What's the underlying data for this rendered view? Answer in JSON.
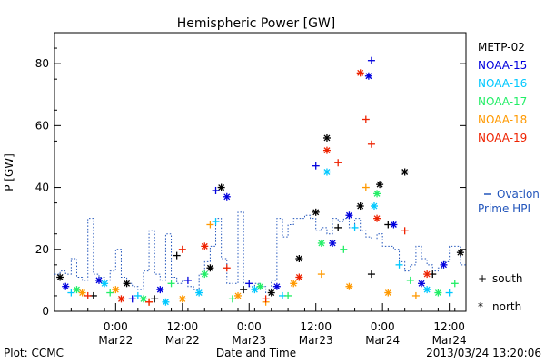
{
  "chart_data": {
    "type": "scatter",
    "title": "Hemispheric Power [GW]",
    "xlabel": "Date and Time",
    "ylabel": "P [GW]",
    "x_range": [
      "2013-03-21T13:00",
      "2013-03-24T15:00"
    ],
    "ylim": [
      0,
      90
    ],
    "y_ticks": [
      0,
      20,
      40,
      60,
      80
    ],
    "x_ticks": [
      {
        "t": "2013-03-22T00:00",
        "top": "0:00",
        "bottom": "Mar22"
      },
      {
        "t": "2013-03-22T12:00",
        "top": "12:00",
        "bottom": "Mar22"
      },
      {
        "t": "2013-03-23T00:00",
        "top": "0:00",
        "bottom": "Mar23"
      },
      {
        "t": "2013-03-23T12:00",
        "top": "12:00",
        "bottom": "Mar23"
      },
      {
        "t": "2013-03-24T00:00",
        "top": "0:00",
        "bottom": "Mar24"
      },
      {
        "t": "2013-03-24T12:00",
        "top": "12:00",
        "bottom": "Mar24"
      }
    ],
    "legend": [
      {
        "name": "METP-02",
        "color": "#000000"
      },
      {
        "name": "NOAA-15",
        "color": "#0000dd"
      },
      {
        "name": "NOAA-16",
        "color": "#00c8ff"
      },
      {
        "name": "NOAA-17",
        "color": "#22ee66"
      },
      {
        "name": "NOAA-18",
        "color": "#ff9900"
      },
      {
        "name": "NOAA-19",
        "color": "#ee2200"
      }
    ],
    "legend_position": "right",
    "ovation_label": "Ovation Prime HPI",
    "ovation_color": "#2255bb",
    "marker_legend": {
      "south": "south",
      "north": "north"
    },
    "ovation_series": {
      "x": [
        "2013-03-21T13:00",
        "2013-03-21T14:00",
        "2013-03-21T15:00",
        "2013-03-21T16:00",
        "2013-03-21T17:00",
        "2013-03-21T18:00",
        "2013-03-21T19:00",
        "2013-03-21T20:00",
        "2013-03-21T21:00",
        "2013-03-21T22:00",
        "2013-03-21T23:00",
        "2013-03-22T00:00",
        "2013-03-22T01:00",
        "2013-03-22T02:00",
        "2013-03-22T03:00",
        "2013-03-22T04:00",
        "2013-03-22T05:00",
        "2013-03-22T06:00",
        "2013-03-22T07:00",
        "2013-03-22T08:00",
        "2013-03-22T09:00",
        "2013-03-22T10:00",
        "2013-03-22T11:00",
        "2013-03-22T12:00",
        "2013-03-22T13:00",
        "2013-03-22T14:00",
        "2013-03-22T15:00",
        "2013-03-22T16:00",
        "2013-03-22T17:00",
        "2013-03-22T18:00",
        "2013-03-22T19:00",
        "2013-03-22T20:00",
        "2013-03-22T21:00",
        "2013-03-22T22:00",
        "2013-03-22T23:00",
        "2013-03-23T00:00",
        "2013-03-23T01:00",
        "2013-03-23T02:00",
        "2013-03-23T03:00",
        "2013-03-23T04:00",
        "2013-03-23T05:00",
        "2013-03-23T06:00",
        "2013-03-23T07:00",
        "2013-03-23T08:00",
        "2013-03-23T09:00",
        "2013-03-23T10:00",
        "2013-03-23T11:00",
        "2013-03-23T12:00",
        "2013-03-23T13:00",
        "2013-03-23T14:00",
        "2013-03-23T15:00",
        "2013-03-23T16:00",
        "2013-03-23T17:00",
        "2013-03-23T18:00",
        "2013-03-23T19:00",
        "2013-03-23T20:00",
        "2013-03-23T21:00",
        "2013-03-23T22:00",
        "2013-03-23T23:00",
        "2013-03-24T00:00",
        "2013-03-24T01:00",
        "2013-03-24T02:00",
        "2013-03-24T03:00",
        "2013-03-24T04:00",
        "2013-03-24T05:00",
        "2013-03-24T06:00",
        "2013-03-24T07:00",
        "2013-03-24T08:00",
        "2013-03-24T09:00",
        "2013-03-24T10:00",
        "2013-03-24T11:00",
        "2013-03-24T12:00",
        "2013-03-24T13:00",
        "2013-03-24T14:00"
      ],
      "y": [
        12,
        13,
        12,
        17,
        11,
        10,
        30,
        12,
        11,
        10,
        13,
        20,
        11,
        9,
        8,
        7,
        13,
        26,
        12,
        10,
        25,
        11,
        9,
        10,
        8,
        7,
        12,
        16,
        21,
        30,
        17,
        9,
        9,
        32,
        9,
        8,
        9,
        8,
        6,
        10,
        30,
        24,
        28,
        30,
        30,
        31,
        30,
        26,
        27,
        25,
        30,
        29,
        30,
        27,
        30,
        26,
        24,
        23,
        25,
        21,
        21,
        20,
        16,
        13,
        15,
        21,
        17,
        15,
        13,
        14,
        16,
        21,
        21,
        15
      ]
    },
    "series": [
      {
        "name": "METP-02",
        "color": "#000000",
        "x": [
          "2013-03-21T14:00",
          "2013-03-21T20:00",
          "2013-03-22T02:00",
          "2013-03-22T07:00",
          "2013-03-22T11:00",
          "2013-03-22T17:00",
          "2013-03-22T19:00",
          "2013-03-22T23:00",
          "2013-03-23T04:00",
          "2013-03-23T09:00",
          "2013-03-23T12:00",
          "2013-03-23T14:00",
          "2013-03-23T16:00",
          "2013-03-23T20:00",
          "2013-03-23T22:00",
          "2013-03-23T23:30",
          "2013-03-24T01:00",
          "2013-03-24T04:00",
          "2013-03-24T09:00",
          "2013-03-24T14:00"
        ],
        "y": [
          11,
          5,
          9,
          4,
          18,
          14,
          40,
          7,
          6,
          17,
          32,
          56,
          27,
          34,
          12,
          41,
          28,
          45,
          12,
          19
        ],
        "hemi": [
          "n",
          "s",
          "n",
          "s",
          "s",
          "n",
          "n",
          "s",
          "n",
          "n",
          "n",
          "n",
          "s",
          "n",
          "s",
          "n",
          "s",
          "n",
          "s",
          "n"
        ]
      },
      {
        "name": "NOAA-15",
        "color": "#0000dd",
        "x": [
          "2013-03-21T15:00",
          "2013-03-21T21:00",
          "2013-03-22T03:00",
          "2013-03-22T08:00",
          "2013-03-22T13:00",
          "2013-03-22T18:00",
          "2013-03-22T20:00",
          "2013-03-23T00:00",
          "2013-03-23T05:00",
          "2013-03-23T12:00",
          "2013-03-23T15:00",
          "2013-03-23T18:00",
          "2013-03-23T21:30",
          "2013-03-23T22:00",
          "2013-03-24T02:00",
          "2013-03-24T07:00",
          "2013-03-24T11:00"
        ],
        "y": [
          8,
          10,
          4,
          7,
          10,
          39,
          37,
          9,
          8,
          47,
          22,
          31,
          76,
          81,
          28,
          9,
          15
        ],
        "hemi": [
          "n",
          "n",
          "s",
          "n",
          "s",
          "s",
          "n",
          "s",
          "n",
          "s",
          "n",
          "n",
          "n",
          "s",
          "n",
          "n",
          "n"
        ]
      },
      {
        "name": "NOAA-16",
        "color": "#00c8ff",
        "x": [
          "2013-03-21T16:00",
          "2013-03-21T22:00",
          "2013-03-22T04:00",
          "2013-03-22T09:00",
          "2013-03-22T15:00",
          "2013-03-22T18:00",
          "2013-03-23T01:00",
          "2013-03-23T06:00",
          "2013-03-23T14:00",
          "2013-03-23T19:00",
          "2013-03-23T22:30",
          "2013-03-24T03:00",
          "2013-03-24T08:00",
          "2013-03-24T12:00"
        ],
        "y": [
          6,
          9,
          5,
          3,
          6,
          29,
          7,
          5,
          45,
          27,
          34,
          15,
          7,
          6
        ],
        "hemi": [
          "s",
          "n",
          "s",
          "n",
          "n",
          "s",
          "n",
          "s",
          "n",
          "s",
          "n",
          "s",
          "n",
          "s"
        ]
      },
      {
        "name": "NOAA-17",
        "color": "#22ee66",
        "x": [
          "2013-03-21T17:00",
          "2013-03-21T23:00",
          "2013-03-22T05:00",
          "2013-03-22T10:00",
          "2013-03-22T16:00",
          "2013-03-22T21:00",
          "2013-03-23T02:00",
          "2013-03-23T07:00",
          "2013-03-23T13:00",
          "2013-03-23T17:00",
          "2013-03-23T23:00",
          "2013-03-24T05:00",
          "2013-03-24T10:00",
          "2013-03-24T13:00"
        ],
        "y": [
          7,
          6,
          4,
          9,
          12,
          4,
          8,
          5,
          22,
          20,
          38,
          10,
          6,
          9
        ],
        "hemi": [
          "n",
          "s",
          "n",
          "s",
          "n",
          "s",
          "n",
          "s",
          "n",
          "s",
          "n",
          "s",
          "n",
          "s"
        ]
      },
      {
        "name": "NOAA-18",
        "color": "#ff9900",
        "x": [
          "2013-03-21T18:00",
          "2013-03-22T00:00",
          "2013-03-22T06:00",
          "2013-03-22T12:00",
          "2013-03-22T17:00",
          "2013-03-22T22:00",
          "2013-03-23T03:00",
          "2013-03-23T08:00",
          "2013-03-23T13:00",
          "2013-03-23T18:00",
          "2013-03-23T21:00",
          "2013-03-24T01:00",
          "2013-03-24T06:00"
        ],
        "y": [
          6,
          7,
          3,
          4,
          28,
          5,
          3,
          9,
          12,
          8,
          40,
          6,
          5
        ],
        "hemi": [
          "n",
          "n",
          "s",
          "n",
          "s",
          "n",
          "s",
          "n",
          "s",
          "n",
          "s",
          "n",
          "s"
        ]
      },
      {
        "name": "NOAA-19",
        "color": "#ee2200",
        "x": [
          "2013-03-21T19:00",
          "2013-03-22T01:00",
          "2013-03-22T06:00",
          "2013-03-22T12:00",
          "2013-03-22T16:00",
          "2013-03-22T20:00",
          "2013-03-23T03:00",
          "2013-03-23T09:00",
          "2013-03-23T14:00",
          "2013-03-23T16:00",
          "2013-03-23T20:00",
          "2013-03-23T21:00",
          "2013-03-23T22:00",
          "2013-03-23T23:00",
          "2013-03-24T04:00",
          "2013-03-24T08:00"
        ],
        "y": [
          5,
          4,
          3,
          20,
          21,
          14,
          4,
          11,
          52,
          48,
          77,
          62,
          54,
          30,
          26,
          12
        ],
        "hemi": [
          "s",
          "n",
          "s",
          "s",
          "n",
          "s",
          "s",
          "n",
          "n",
          "s",
          "n",
          "s",
          "s",
          "n",
          "s",
          "n"
        ]
      }
    ]
  },
  "footer": {
    "left": "Plot: CCMC",
    "right": "2013/03/24 13:20:06"
  }
}
